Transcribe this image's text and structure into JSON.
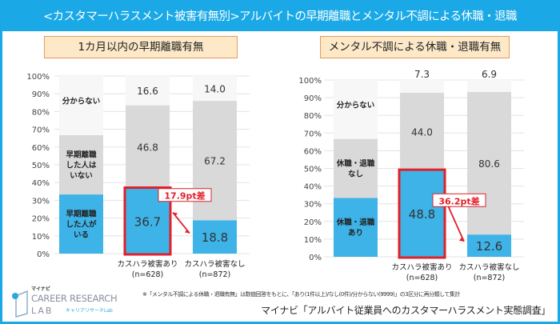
{
  "title": "<カスタマーハラスメント被害有無別>アルバイトの早期離職とメンタル不調による休職・退職",
  "note": "※「メンタル不調による休職・退職有無」は数値回答をもとに、「あり(1件以上)/なし(0件)/分からない(9999)」の3区分に再分類して集計",
  "source": "マイナビ「アルバイト従業員へのカスタマーハラスメント実態調査」",
  "logo": {
    "small": "マイナビ",
    "line1": "CAREER RESEARCH",
    "line2": "LAB",
    "kana": "キャリアリサーチLab"
  },
  "colors": {
    "banner": "#1aa9e6",
    "blue": "#3db3e8",
    "gray": "#d9d9d9",
    "light": "#f7f7f7",
    "highlight": "#e0202a"
  },
  "chart_data": [
    {
      "type": "bar",
      "stacked": true,
      "title": "1カ月以内の早期離職有無",
      "ylim": [
        0,
        100
      ],
      "yticks": [
        "0%",
        "10%",
        "20%",
        "30%",
        "40%",
        "50%",
        "60%",
        "70%",
        "80%",
        "90%",
        "100%"
      ],
      "grid": true,
      "legend_labels": [
        "早期離職\nした人が\nいる",
        "早期離職\nした人は\nいない",
        "分からない"
      ],
      "categories": [
        "カスハラ被害あり\n(n=628)",
        "カスハラ被害なし\n(n=872)"
      ],
      "series": [
        {
          "name": "早期離職した人がいる",
          "values": [
            36.7,
            18.8
          ]
        },
        {
          "name": "早期離職した人はいない",
          "values": [
            46.8,
            67.2
          ]
        },
        {
          "name": "分からない",
          "values": [
            16.6,
            14.0
          ]
        }
      ],
      "annotation": "17.9pt差"
    },
    {
      "type": "bar",
      "stacked": true,
      "title": "メンタル不調による休職・退職有無",
      "ylim": [
        0,
        100
      ],
      "yticks": [
        "0%",
        "10%",
        "20%",
        "30%",
        "40%",
        "50%",
        "60%",
        "70%",
        "80%",
        "90%",
        "100%"
      ],
      "grid": true,
      "legend_labels": [
        "休職・退職\nあり",
        "休職・退職\nなし",
        "分からない"
      ],
      "categories": [
        "カスハラ被害あり\n(n=628)",
        "カスハラ被害なし\n(n=872)"
      ],
      "series": [
        {
          "name": "休職・退職あり",
          "values": [
            48.8,
            12.6
          ]
        },
        {
          "name": "休職・退職なし",
          "values": [
            44.0,
            80.6
          ]
        },
        {
          "name": "分からない",
          "values": [
            7.3,
            6.9
          ]
        }
      ],
      "annotation": "36.2pt差"
    }
  ]
}
